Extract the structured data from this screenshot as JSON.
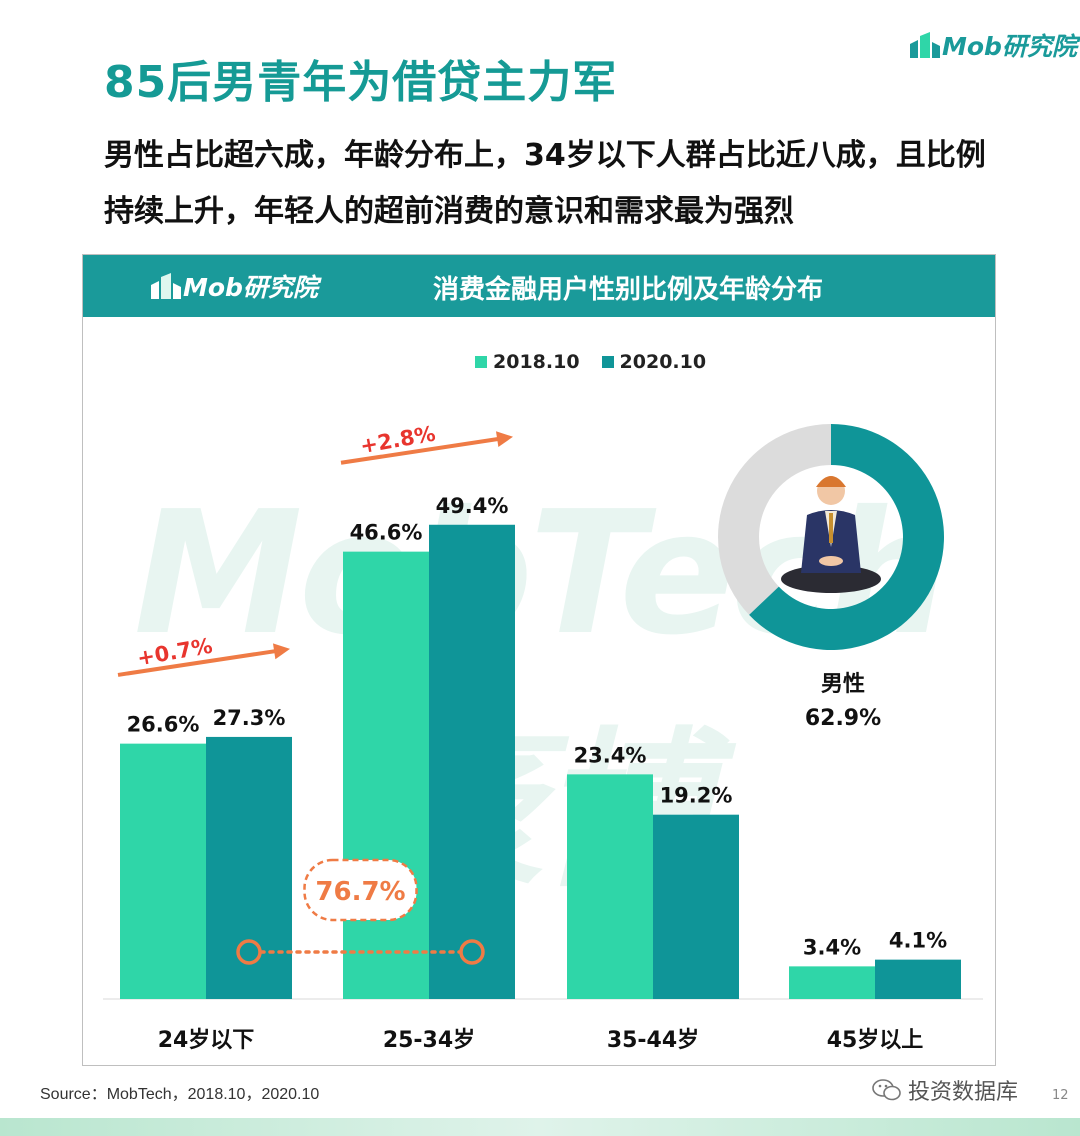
{
  "title": "85后男青年为借贷主力军",
  "subtitle": "男性占比超六成，年龄分布上，34岁以下人群占比近八成，且比例持续上升，年轻人的超前消费的意识和需求最为强烈",
  "logo": {
    "text": "Mob研究院",
    "color": "#1a9a9a"
  },
  "panel": {
    "title": "消费金融用户性别比例及年龄分布"
  },
  "watermark": "MobTech袤博",
  "colors": {
    "series_2018": "#2fd6a8",
    "series_2020": "#0f9598",
    "accent": "#ef7b45",
    "growth_text": "#e8352e",
    "donut_rest": "#dcdcdc"
  },
  "chart_data": [
    {
      "type": "bar",
      "categories": [
        "24岁以下",
        "25-34岁",
        "35-44岁",
        "45岁以上"
      ],
      "series": [
        {
          "name": "2018.10",
          "values": [
            26.6,
            46.6,
            23.4,
            3.4
          ],
          "labels": [
            "26.6%",
            "46.6%",
            "23.4%",
            "3.4%"
          ]
        },
        {
          "name": "2020.10",
          "values": [
            27.3,
            49.4,
            19.2,
            4.1
          ],
          "labels": [
            "27.3%",
            "49.4%",
            "19.2%",
            "4.1%"
          ]
        }
      ],
      "annotations": [
        {
          "category": "24岁以下",
          "text": "+0.7%"
        },
        {
          "category": "25-34岁",
          "text": "+2.8%"
        }
      ],
      "combined_callout": {
        "text": "76.7%",
        "spans": [
          "24岁以下",
          "25-34岁"
        ],
        "series": "2020.10"
      },
      "legend_position": "top-center",
      "grid": false
    },
    {
      "type": "pie",
      "style": "donut",
      "slices": [
        {
          "name": "男性",
          "value": 62.9,
          "label": "62.9%"
        },
        {
          "name": "",
          "value": 37.1
        }
      ]
    }
  ],
  "source": "Source：MobTech，2018.10，2020.10",
  "footer": {
    "wechat_label": "投资数据库",
    "page_number": "12"
  }
}
